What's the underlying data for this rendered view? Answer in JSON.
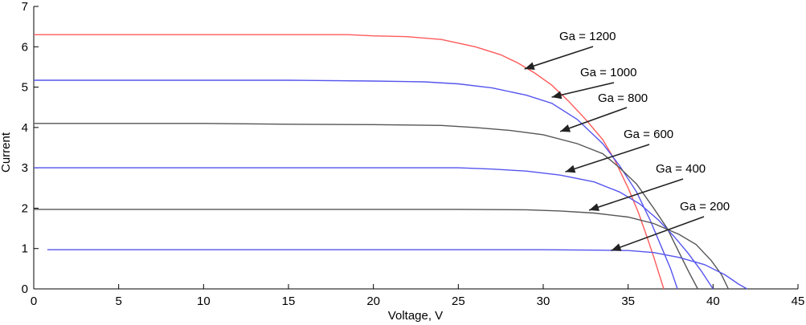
{
  "chart_data": {
    "type": "line",
    "title": "",
    "xlabel": "Voltage, V",
    "ylabel": "Current",
    "xlim": [
      0,
      45
    ],
    "ylim": [
      0,
      7
    ],
    "xticks": [
      0,
      5,
      10,
      15,
      20,
      25,
      30,
      35,
      40,
      45
    ],
    "yticks": [
      0,
      1,
      2,
      3,
      4,
      5,
      6,
      7
    ],
    "grid": false,
    "legend": "none",
    "series": [
      {
        "name": "Ga = 1200",
        "color": "#ff5a5a",
        "points": [
          [
            0,
            6.3
          ],
          [
            5,
            6.3
          ],
          [
            10,
            6.3
          ],
          [
            15,
            6.3
          ],
          [
            18.5,
            6.3
          ],
          [
            20,
            6.27
          ],
          [
            22,
            6.25
          ],
          [
            24,
            6.18
          ],
          [
            26,
            6.0
          ],
          [
            27.5,
            5.8
          ],
          [
            28.5,
            5.6
          ],
          [
            29.5,
            5.35
          ],
          [
            30.5,
            5.05
          ],
          [
            31.5,
            4.65
          ],
          [
            32.5,
            4.2
          ],
          [
            33.5,
            3.7
          ],
          [
            34.2,
            3.2
          ],
          [
            35,
            2.5
          ],
          [
            35.6,
            1.9
          ],
          [
            36.1,
            1.3
          ],
          [
            36.5,
            0.8
          ],
          [
            36.8,
            0.4
          ],
          [
            37.1,
            0
          ]
        ]
      },
      {
        "name": "Ga = 1000",
        "color": "#5555ee",
        "points": [
          [
            0,
            5.17
          ],
          [
            5,
            5.17
          ],
          [
            10,
            5.17
          ],
          [
            15,
            5.17
          ],
          [
            20,
            5.15
          ],
          [
            23,
            5.13
          ],
          [
            25,
            5.08
          ],
          [
            27,
            4.98
          ],
          [
            29,
            4.8
          ],
          [
            30.5,
            4.6
          ],
          [
            32,
            4.2
          ],
          [
            33.5,
            3.6
          ],
          [
            34.5,
            3.05
          ],
          [
            35.5,
            2.4
          ],
          [
            36.3,
            1.7
          ],
          [
            37,
            1.0
          ],
          [
            37.5,
            0.5
          ],
          [
            37.9,
            0
          ]
        ]
      },
      {
        "name": "Ga = 800",
        "color": "#555555",
        "points": [
          [
            0,
            4.1
          ],
          [
            5,
            4.1
          ],
          [
            10,
            4.1
          ],
          [
            15,
            4.08
          ],
          [
            20,
            4.07
          ],
          [
            24,
            4.05
          ],
          [
            26,
            4.0
          ],
          [
            28,
            3.93
          ],
          [
            30,
            3.82
          ],
          [
            32,
            3.6
          ],
          [
            33.5,
            3.35
          ],
          [
            34.5,
            3.0
          ],
          [
            35.5,
            2.6
          ],
          [
            36.5,
            2.0
          ],
          [
            37.3,
            1.5
          ],
          [
            38,
            0.9
          ],
          [
            38.6,
            0.4
          ],
          [
            39.1,
            0
          ]
        ]
      },
      {
        "name": "Ga = 600",
        "color": "#5555ee",
        "points": [
          [
            0,
            3.0
          ],
          [
            5,
            3.0
          ],
          [
            10,
            3.0
          ],
          [
            15,
            3.0
          ],
          [
            20,
            3.0
          ],
          [
            25,
            3.0
          ],
          [
            27,
            2.97
          ],
          [
            29,
            2.92
          ],
          [
            31,
            2.82
          ],
          [
            33,
            2.65
          ],
          [
            34.5,
            2.4
          ],
          [
            35.7,
            2.1
          ],
          [
            36.8,
            1.7
          ],
          [
            37.7,
            1.3
          ],
          [
            38.5,
            0.9
          ],
          [
            39.3,
            0.45
          ],
          [
            40,
            0
          ]
        ]
      },
      {
        "name": "Ga = 400",
        "color": "#555555",
        "points": [
          [
            0,
            1.97
          ],
          [
            5,
            1.97
          ],
          [
            10,
            1.97
          ],
          [
            15,
            1.97
          ],
          [
            20,
            1.97
          ],
          [
            25,
            1.97
          ],
          [
            29,
            1.96
          ],
          [
            31,
            1.93
          ],
          [
            33,
            1.88
          ],
          [
            35,
            1.78
          ],
          [
            36.5,
            1.62
          ],
          [
            38,
            1.35
          ],
          [
            39,
            1.1
          ],
          [
            39.9,
            0.7
          ],
          [
            40.5,
            0.35
          ],
          [
            40.9,
            0
          ]
        ]
      },
      {
        "name": "Ga = 200",
        "color": "#5555ee",
        "points": [
          [
            0.8,
            0.97
          ],
          [
            5,
            0.97
          ],
          [
            10,
            0.97
          ],
          [
            15,
            0.97
          ],
          [
            20,
            0.97
          ],
          [
            25,
            0.97
          ],
          [
            30,
            0.97
          ],
          [
            33,
            0.96
          ],
          [
            35,
            0.95
          ],
          [
            36.5,
            0.9
          ],
          [
            38,
            0.78
          ],
          [
            39.5,
            0.6
          ],
          [
            40.7,
            0.35
          ],
          [
            41.5,
            0.12
          ],
          [
            42,
            0
          ]
        ]
      }
    ],
    "annotations": [
      {
        "text": "Ga = 1200",
        "series": "Ga = 1200",
        "point": [
          28.9,
          5.45
        ]
      },
      {
        "text": "Ga = 1000",
        "series": "Ga = 1000",
        "point": [
          30.5,
          4.75
        ]
      },
      {
        "text": "Ga = 800",
        "series": "Ga = 800",
        "point": [
          31.0,
          3.9
        ]
      },
      {
        "text": "Ga = 600",
        "series": "Ga = 600",
        "point": [
          31.3,
          2.9
        ]
      },
      {
        "text": "Ga = 400",
        "series": "Ga = 400",
        "point": [
          32.7,
          1.95
        ]
      },
      {
        "text": "Ga = 200",
        "series": "Ga = 200",
        "point": [
          34.0,
          0.95
        ]
      }
    ]
  }
}
